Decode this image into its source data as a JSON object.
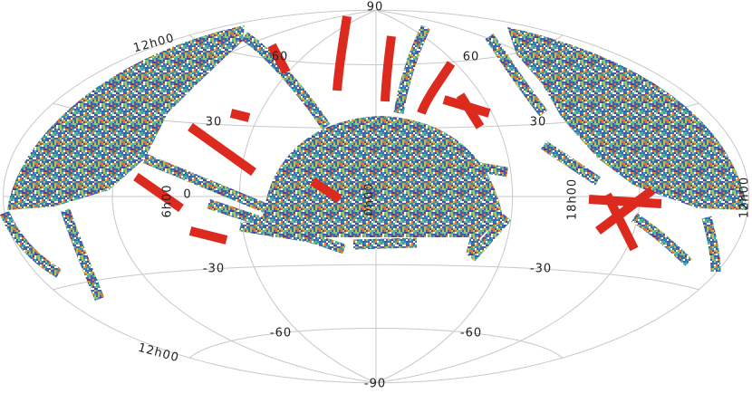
{
  "map": {
    "pole_labels": [
      "90",
      "-90"
    ],
    "lat_labels": [
      "60",
      "60",
      "30",
      "30",
      "0",
      "-30",
      "-30",
      "-60",
      "-60"
    ],
    "lon_labels": [
      "12h00",
      "6h00",
      "0h00",
      "18h00",
      "12h00",
      "12h00"
    ]
  }
}
